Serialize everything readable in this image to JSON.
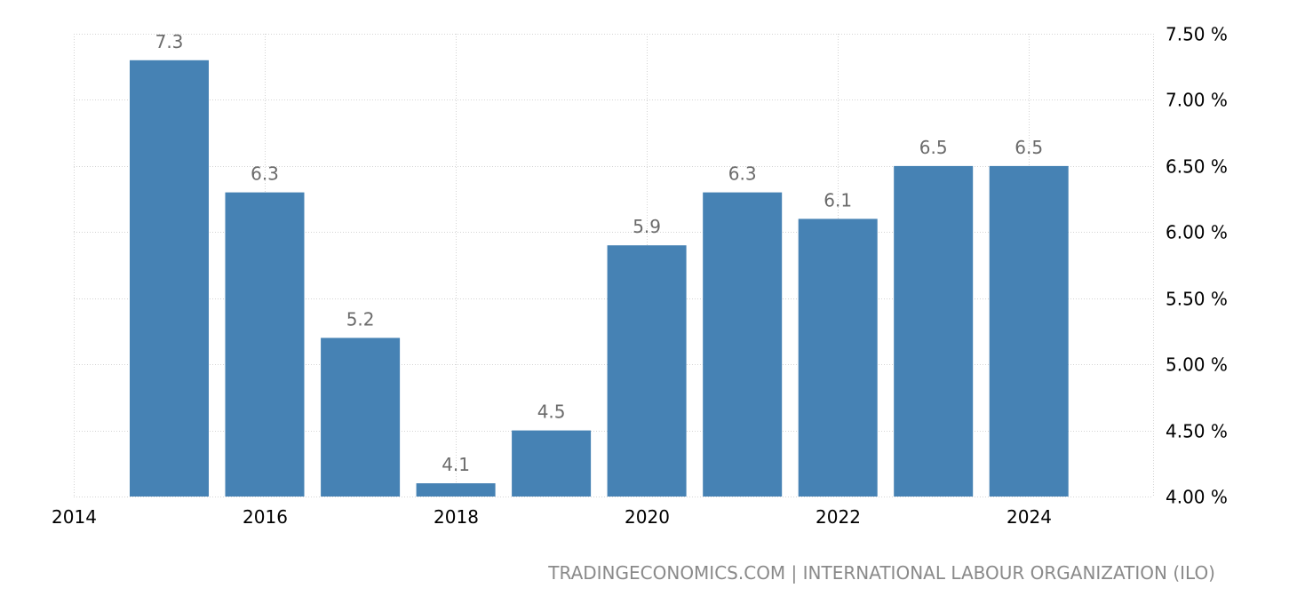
{
  "chart_data": {
    "type": "bar",
    "x": [
      2015,
      2016,
      2017,
      2018,
      2019,
      2020,
      2021,
      2022,
      2023,
      2024
    ],
    "values": [
      7.3,
      6.3,
      5.2,
      4.1,
      4.5,
      5.9,
      6.3,
      6.1,
      6.5,
      6.5
    ],
    "data_labels": [
      "7.3",
      "6.3",
      "5.2",
      "4.1",
      "4.5",
      "5.9",
      "6.3",
      "6.1",
      "6.5",
      "6.5"
    ],
    "xlim": [
      2014,
      2025.3
    ],
    "ylim": [
      4.0,
      7.5
    ],
    "x_ticks": [
      2014,
      2016,
      2018,
      2020,
      2022,
      2024
    ],
    "x_tick_labels": [
      "2014",
      "2016",
      "2018",
      "2020",
      "2022",
      "2024"
    ],
    "y_ticks": [
      4.0,
      4.5,
      5.0,
      5.5,
      6.0,
      6.5,
      7.0,
      7.5
    ],
    "y_tick_labels": [
      "4.00 %",
      "4.50 %",
      "5.00 %",
      "5.50 %",
      "6.00 %",
      "6.50 %",
      "7.00 %",
      "7.50 %"
    ],
    "y_axis_side": "right",
    "grid": true,
    "bar_color": "#4682b4",
    "source": "TRADINGECONOMICS.COM | INTERNATIONAL LABOUR ORGANIZATION (ILO)"
  }
}
